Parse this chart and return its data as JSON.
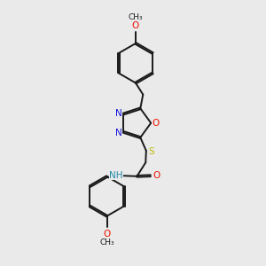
{
  "bg_color": "#eaeaea",
  "bond_color": "#1a1a1a",
  "lw": 1.4,
  "figsize": [
    3.0,
    3.0
  ],
  "dpi": 100,
  "colors": {
    "N": "#1212dd",
    "O": "#ee1100",
    "S": "#bbbb00",
    "NH": "#2288aa",
    "C": "#1a1a1a"
  }
}
